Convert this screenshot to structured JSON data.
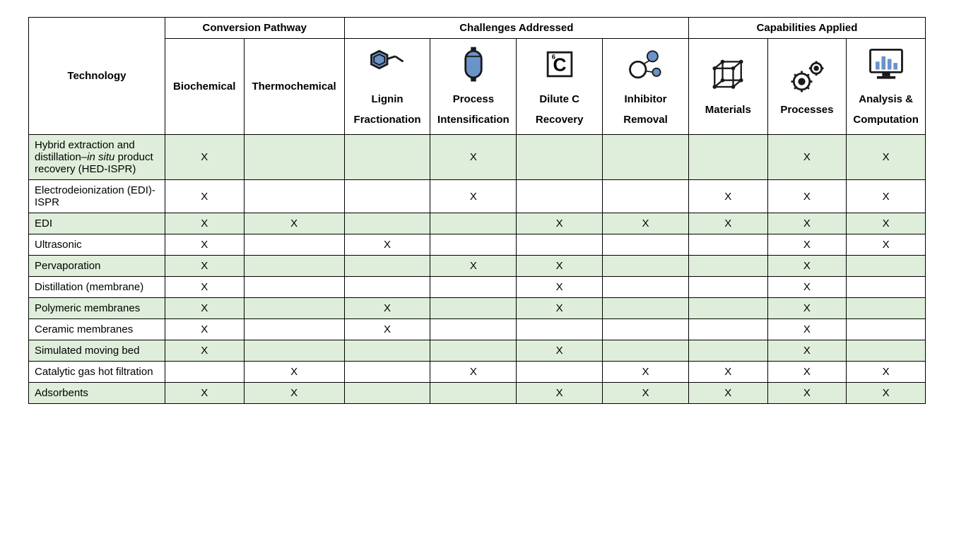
{
  "colors": {
    "stripe": "#dfeeda",
    "border": "#000000",
    "iconBlue": "#6a93c9",
    "iconDark": "#1a1a1a"
  },
  "headers": {
    "technology": "Technology",
    "conversionPathway": "Conversion Pathway",
    "challengesAddressed": "Challenges Addressed",
    "capabilitiesApplied": "Capabilities Applied",
    "biochemical": "Biochemical",
    "thermochemical": "Thermochemical",
    "lignin1": "Lignin",
    "lignin2": "Fractionation",
    "process1": "Process",
    "process2": "Intensification",
    "dilute1": "Dilute C",
    "dilute2": "Recovery",
    "inhibitor1": "Inhibitor",
    "inhibitor2": "Removal",
    "materials": "Materials",
    "processes": "Processes",
    "analysis1": "Analysis &",
    "analysis2": "Computation"
  },
  "mark": "X",
  "rows": [
    {
      "tech_pre": "Hybrid extraction and distillation–",
      "tech_it": "in situ",
      "tech_post": " product recovery (HED-ISPR)",
      "cells": [
        "X",
        "",
        "",
        "X",
        "",
        "",
        "",
        "X",
        "X"
      ]
    },
    {
      "tech": "Electrodeionization (EDI)-ISPR",
      "cells": [
        "X",
        "",
        "",
        "X",
        "",
        "",
        "X",
        "X",
        "X"
      ]
    },
    {
      "tech": "EDI",
      "cells": [
        "X",
        "X",
        "",
        "",
        "X",
        "X",
        "X",
        "X",
        "X"
      ]
    },
    {
      "tech": "Ultrasonic",
      "cells": [
        "X",
        "",
        "X",
        "",
        "",
        "",
        "",
        "X",
        "X"
      ]
    },
    {
      "tech": "Pervaporation",
      "cells": [
        "X",
        "",
        "",
        "X",
        "X",
        "",
        "",
        "X",
        ""
      ]
    },
    {
      "tech": "Distillation (membrane)",
      "cells": [
        "X",
        "",
        "",
        "",
        "X",
        "",
        "",
        "X",
        ""
      ]
    },
    {
      "tech": "Polymeric membranes",
      "cells": [
        "X",
        "",
        "X",
        "",
        "X",
        "",
        "",
        "X",
        ""
      ]
    },
    {
      "tech": "Ceramic membranes",
      "cells": [
        "X",
        "",
        "X",
        "",
        "",
        "",
        "",
        "X",
        ""
      ]
    },
    {
      "tech": "Simulated moving bed",
      "cells": [
        "X",
        "",
        "",
        "",
        "X",
        "",
        "",
        "X",
        ""
      ]
    },
    {
      "tech": "Catalytic gas hot filtration",
      "cells": [
        "",
        "X",
        "",
        "X",
        "",
        "X",
        "X",
        "X",
        "X"
      ]
    },
    {
      "tech": "Adsorbents",
      "cells": [
        "X",
        "X",
        "",
        "",
        "X",
        "X",
        "X",
        "X",
        "X"
      ]
    }
  ]
}
